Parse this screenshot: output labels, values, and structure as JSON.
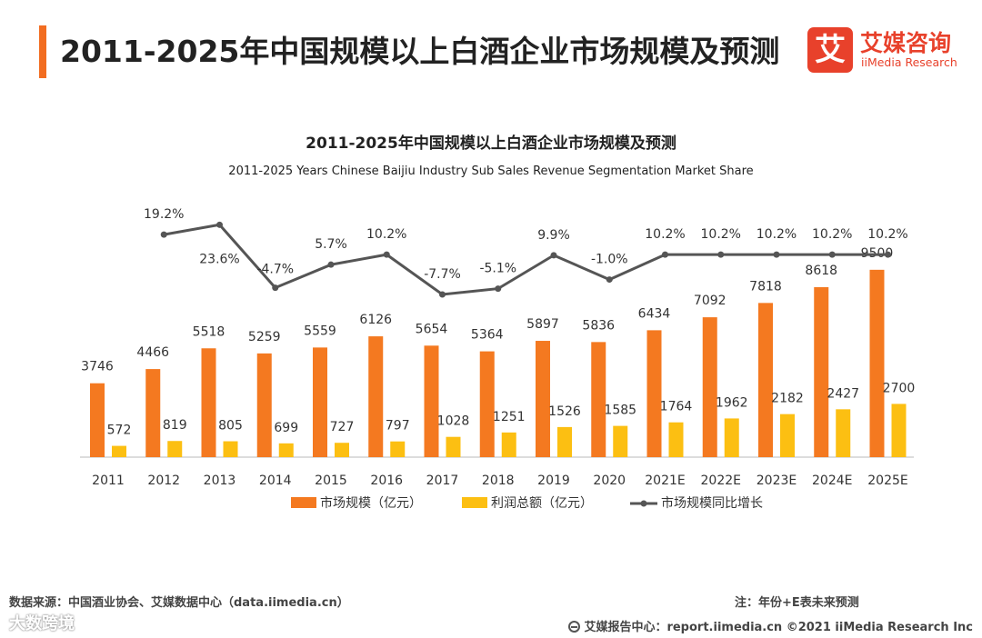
{
  "header": {
    "title": "2011-2025年中国规模以上白酒企业市场规模及预测",
    "logo_mark": "艾",
    "logo_cn": "艾媒咨询",
    "logo_en": "iiMedia Research"
  },
  "chart_data": {
    "type": "bar",
    "title": "2011-2025年中国规模以上白酒企业市场规模及预测",
    "subtitle": "2011-2025 Years Chinese Baijiu Industry Sub Sales Revenue Segmentation Market Share",
    "categories": [
      "2011",
      "2012",
      "2013",
      "2014",
      "2015",
      "2016",
      "2017",
      "2018",
      "2019",
      "2020",
      "2021E",
      "2022E",
      "2023E",
      "2024E",
      "2025E"
    ],
    "series": [
      {
        "name": "市场规模（亿元）",
        "type": "bar",
        "color": "#f47920",
        "values": [
          3746,
          4466,
          5518,
          5259,
          5559,
          6126,
          5654,
          5364,
          5897,
          5836,
          6434,
          7092,
          7818,
          8618,
          9500
        ]
      },
      {
        "name": "利润总额（亿元）",
        "type": "bar",
        "color": "#fcbf12",
        "values": [
          572,
          819,
          805,
          699,
          727,
          797,
          1028,
          1251,
          1526,
          1585,
          1764,
          1962,
          2182,
          2427,
          2700
        ]
      },
      {
        "name": "市场规模同比增长",
        "type": "line",
        "color": "#555555",
        "values": [
          null,
          19.2,
          23.6,
          -4.7,
          5.7,
          10.2,
          -7.7,
          -5.1,
          9.9,
          -1.0,
          10.2,
          10.2,
          10.2,
          10.2,
          10.2
        ],
        "labels": [
          null,
          "19.2%",
          "23.6%",
          "-4.7%",
          "5.7%",
          "10.2%",
          "-7.7%",
          "-5.1%",
          "9.9%",
          "-1.0%",
          "10.2%",
          "10.2%",
          "10.2%",
          "10.2%",
          "10.2%"
        ]
      }
    ],
    "legend_position": "bottom",
    "grid": false
  },
  "footer": {
    "source": "数据来源：中国酒业协会、艾媒数据中心（data.iimedia.cn）",
    "note": "注：年份+E表未来预测",
    "copyright": "艾媒报告中心：report.iimedia.cn   ©2021  iiMedia Research  Inc",
    "watermark": "大数跨境"
  }
}
